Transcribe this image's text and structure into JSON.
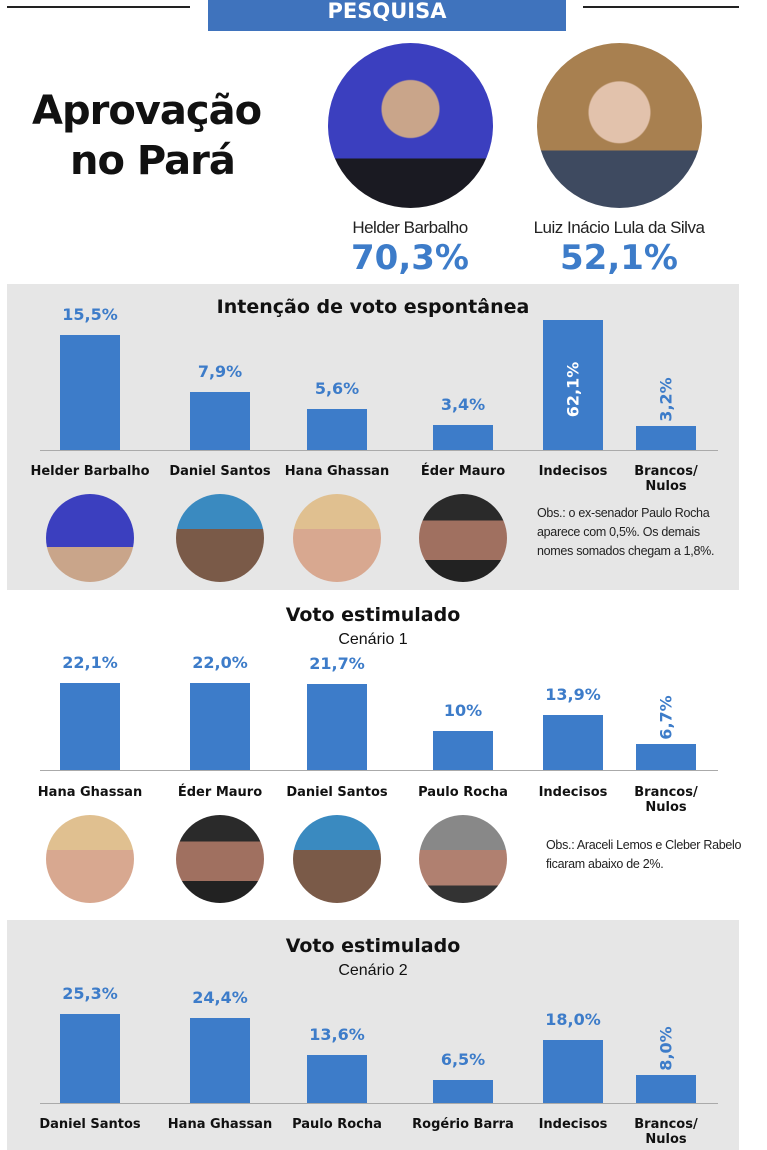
{
  "header": {
    "banner": "PESQUISA",
    "headline_line1": "Aprovação",
    "headline_line2": "no Pará"
  },
  "approval": [
    {
      "name": "Helder Barbalho",
      "value_label": "70,3%",
      "value": 70.3
    },
    {
      "name": "Luiz Inácio Lula da Silva",
      "value_label": "52,1%",
      "value": 52.1
    }
  ],
  "colors": {
    "bar": "#3d7cc9",
    "panel": "#e6e6e6",
    "banner": "#3f73bd"
  },
  "chart_data": [
    {
      "type": "bar",
      "title": "Intenção de voto espontânea",
      "subtitle": "",
      "categories": [
        "Helder Barbalho",
        "Daniel Santos",
        "Hana Ghassan",
        "Éder Mauro",
        "Indecisos",
        "Brancos/ Nulos"
      ],
      "values": [
        15.5,
        7.9,
        5.6,
        3.4,
        62.1,
        3.2
      ],
      "value_labels": [
        "15,5%",
        "7,9%",
        "5,6%",
        "3,4%",
        "62,1%",
        "3,2%"
      ],
      "note": "Obs.: o ex-senador Paulo Rocha aparece com 0,5%. Os demais nomes somados chegam a 1,8%."
    },
    {
      "type": "bar",
      "title": "Voto estimulado",
      "subtitle": "Cenário 1",
      "categories": [
        "Hana Ghassan",
        "Éder Mauro",
        "Daniel Santos",
        "Paulo Rocha",
        "Indecisos",
        "Brancos/ Nulos"
      ],
      "values": [
        22.1,
        22.0,
        21.7,
        10,
        13.9,
        6.7
      ],
      "value_labels": [
        "22,1%",
        "22,0%",
        "21,7%",
        "10%",
        "13,9%",
        "6,7%"
      ],
      "note": "Obs.: Araceli Lemos e Cleber Rabelo ficaram abaixo de 2%."
    },
    {
      "type": "bar",
      "title": "Voto estimulado",
      "subtitle": "Cenário 2",
      "categories": [
        "Daniel Santos",
        "Hana Ghassan",
        "Paulo Rocha",
        "Rogério Barra",
        "Indecisos",
        "Brancos/ Nulos"
      ],
      "values": [
        25.3,
        24.4,
        13.6,
        6.5,
        18.0,
        8.0
      ],
      "value_labels": [
        "25,3%",
        "24,4%",
        "13,6%",
        "6,5%",
        "18,0%",
        "8,0%"
      ],
      "note": ""
    }
  ]
}
